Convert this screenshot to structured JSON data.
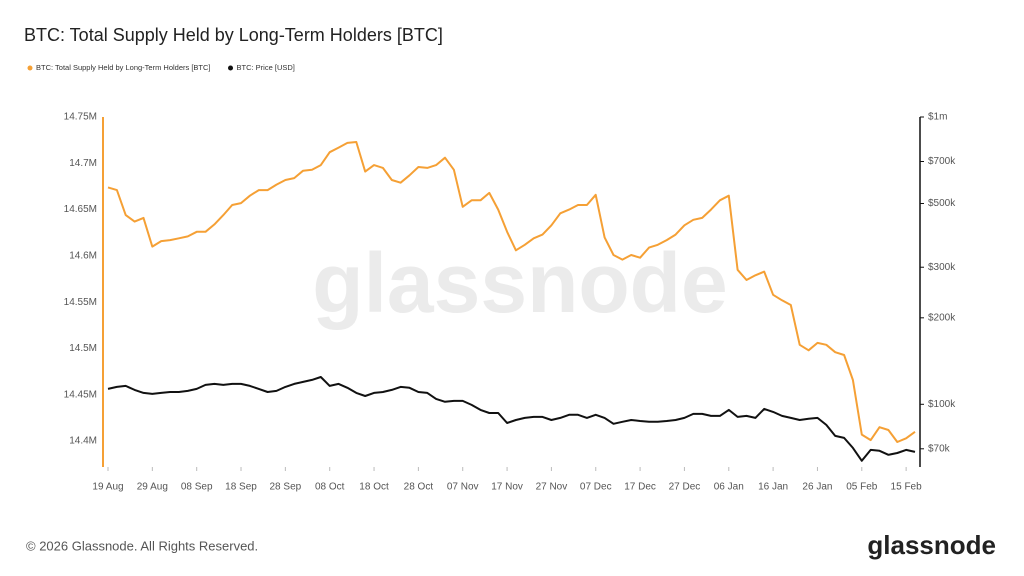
{
  "chart_data": {
    "type": "line",
    "title": "BTC: Total Supply Held by Long-Term Holders [BTC]",
    "watermark": "glassnode",
    "categories": [
      "19 Aug",
      null,
      null,
      null,
      null,
      "29 Aug",
      null,
      null,
      null,
      null,
      "08 Sep",
      null,
      null,
      null,
      null,
      "18 Sep",
      null,
      null,
      null,
      null,
      "28 Sep",
      null,
      null,
      null,
      null,
      "08 Oct",
      null,
      null,
      null,
      null,
      "18 Oct",
      null,
      null,
      null,
      null,
      "28 Oct",
      null,
      null,
      null,
      null,
      "07 Nov",
      null,
      null,
      null,
      null,
      "17 Nov",
      null,
      null,
      null,
      null,
      "27 Nov",
      null,
      null,
      null,
      null,
      "07 Dec",
      null,
      null,
      null,
      null,
      "17 Dec",
      null,
      null,
      null,
      null,
      "27 Dec",
      null,
      null,
      null,
      null,
      "06 Jan",
      null,
      null,
      null,
      null,
      "16 Jan",
      null,
      null,
      null,
      null,
      "26 Jan",
      null,
      null,
      null,
      null,
      "05 Feb",
      null,
      null,
      null,
      null,
      "15 Feb",
      null
    ],
    "series": [
      {
        "name": "BTC: Total Supply Held by Long-Term Holders [BTC]",
        "color": "#f5a035",
        "axis": "y",
        "values": [
          14674000,
          14671000,
          14644000,
          14637000,
          14641000,
          14610000,
          14616000,
          14617000,
          14619000,
          14621000,
          14626000,
          14626000,
          14634000,
          14644000,
          14655000,
          14657000,
          14665000,
          14671000,
          14671000,
          14677000,
          14682000,
          14684000,
          14692000,
          14693000,
          14698000,
          14712000,
          14717000,
          14722000,
          14723000,
          14691000,
          14698000,
          14695000,
          14682000,
          14679000,
          14687000,
          14696000,
          14695000,
          14698000,
          14706000,
          14693000,
          14653000,
          14660000,
          14660000,
          14668000,
          14650000,
          14626000,
          14606000,
          14612000,
          14619000,
          14623000,
          14633000,
          14646000,
          14650000,
          14655000,
          14655000,
          14666000,
          14620000,
          14601000,
          14596000,
          14601000,
          14598000,
          14609000,
          14612000,
          14617000,
          14623000,
          14633000,
          14639000,
          14641000,
          14650000,
          14660000,
          14665000,
          14585000,
          14574000,
          14579000,
          14583000,
          14558000,
          14552000,
          14547000,
          14504000,
          14498000,
          14506000,
          14504000,
          14496000,
          14493000,
          14466000,
          14407000,
          14401000,
          14415000,
          14412000,
          14399000,
          14403000,
          14410000
        ]
      },
      {
        "name": "BTC: Price [USD]",
        "color": "#111111",
        "axis": "y2",
        "values": [
          113100,
          115000,
          115900,
          112200,
          109600,
          108700,
          109600,
          110400,
          110400,
          111300,
          113100,
          116800,
          117800,
          116800,
          117800,
          117800,
          115900,
          113100,
          110400,
          111300,
          115000,
          117800,
          119700,
          121600,
          124500,
          115900,
          117800,
          114100,
          109600,
          106900,
          109600,
          110400,
          112200,
          115000,
          114100,
          110400,
          109600,
          104400,
          102000,
          102800,
          102800,
          99500,
          95600,
          93300,
          93300,
          86100,
          88200,
          89700,
          90400,
          90400,
          88200,
          89700,
          91900,
          91900,
          89700,
          91900,
          89700,
          85500,
          86900,
          88200,
          87500,
          86900,
          86900,
          87500,
          88200,
          89700,
          92600,
          92600,
          91100,
          91100,
          95600,
          90400,
          91100,
          89700,
          96400,
          94100,
          91100,
          89700,
          88200,
          89000,
          89700,
          84800,
          77600,
          76400,
          70500,
          63600,
          69400,
          68900,
          66700,
          67700,
          69400,
          68300
        ]
      }
    ],
    "ylim": [
      14372000,
      14750000
    ],
    "yticks": [
      {
        "value": 14750000,
        "label": "14.75M"
      },
      {
        "value": 14700000,
        "label": "14.7M"
      },
      {
        "value": 14650000,
        "label": "14.65M"
      },
      {
        "value": 14600000,
        "label": "14.6M"
      },
      {
        "value": 14550000,
        "label": "14.55M"
      },
      {
        "value": 14500000,
        "label": "14.5M"
      },
      {
        "value": 14450000,
        "label": "14.45M"
      },
      {
        "value": 14400000,
        "label": "14.4M"
      }
    ],
    "y2lim": [
      60500,
      1000000
    ],
    "y2scale": "log",
    "y2ticks": [
      {
        "value": 1000000,
        "label": "$1m"
      },
      {
        "value": 700000,
        "label": "$700k"
      },
      {
        "value": 500000,
        "label": "$500k"
      },
      {
        "value": 300000,
        "label": "$300k"
      },
      {
        "value": 200000,
        "label": "$200k"
      },
      {
        "value": 100000,
        "label": "$100k"
      },
      {
        "value": 70000,
        "label": "$70k"
      }
    ],
    "grid": false,
    "legend": "top-left"
  },
  "footer": {
    "copyright": "© 2026 Glassnode. All Rights Reserved.",
    "logo": "glassnode"
  }
}
